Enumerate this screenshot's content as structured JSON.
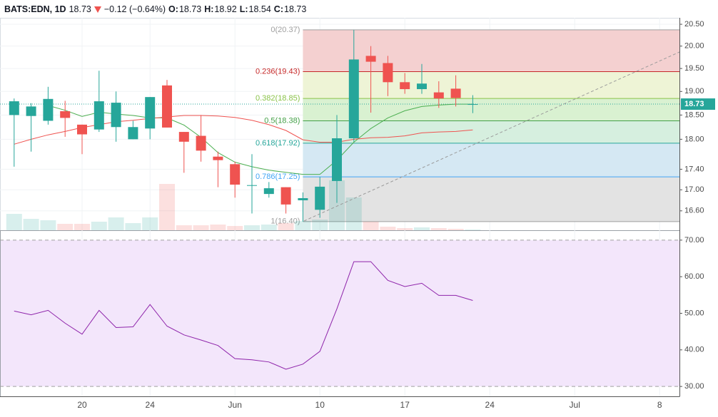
{
  "header": {
    "symbol": "BATS:EDN, 1D",
    "last": 18.73,
    "change": "−0.12 (−0.64%)",
    "ohlc": [
      {
        "name": "O:",
        "value": 18.73
      },
      {
        "name": "H:",
        "value": 18.92
      },
      {
        "name": "L:",
        "value": 18.54
      },
      {
        "name": "C:",
        "value": 18.73
      }
    ]
  },
  "chart_data": [
    {
      "type": "candlestick",
      "categories": [
        null,
        null,
        null,
        null,
        "20",
        null,
        null,
        null,
        "24",
        null,
        null,
        null,
        null,
        "Jun",
        null,
        null,
        null,
        null,
        "10",
        null,
        null,
        null,
        null,
        "17",
        null,
        null,
        null,
        null,
        "24",
        null,
        null,
        null,
        null,
        "Jul",
        null,
        null,
        null,
        null,
        "8",
        null
      ],
      "open": [
        18.5,
        18.48,
        18.38,
        18.58,
        18.3,
        18.2,
        18.25,
        18.0,
        18.22,
        19.13,
        18.15,
        18.07,
        17.65,
        17.5,
        17.08,
        16.92,
        17.05,
        16.8,
        16.62,
        17.17,
        18.02,
        19.78,
        19.62,
        19.2,
        19.05,
        18.98,
        19.06,
        18.73,
        null,
        null,
        null,
        null,
        null,
        null,
        null,
        null,
        null,
        null,
        null,
        null
      ],
      "high": [
        18.85,
        18.75,
        19.1,
        18.8,
        18.3,
        19.45,
        19.0,
        18.38,
        18.88,
        19.25,
        18.15,
        18.5,
        17.75,
        17.55,
        17.7,
        17.15,
        17.05,
        16.95,
        17.25,
        18.5,
        20.37,
        20.0,
        19.78,
        19.4,
        19.6,
        19.22,
        19.35,
        18.92,
        null,
        null,
        null,
        null,
        null,
        null,
        null,
        null,
        null,
        null,
        null,
        null
      ],
      "low": [
        17.45,
        17.75,
        18.3,
        18.05,
        17.7,
        18.15,
        17.95,
        18.0,
        18.0,
        18.24,
        17.33,
        17.55,
        17.05,
        16.85,
        16.55,
        16.85,
        16.55,
        16.4,
        16.47,
        16.75,
        17.95,
        18.55,
        18.9,
        18.95,
        18.95,
        18.65,
        18.68,
        18.54,
        null,
        null,
        null,
        null,
        null,
        null,
        null,
        null,
        null,
        null,
        null,
        null
      ],
      "close": [
        18.79,
        18.68,
        18.84,
        18.44,
        18.1,
        18.79,
        18.76,
        18.25,
        18.88,
        18.24,
        17.95,
        17.77,
        17.58,
        17.1,
        17.09,
        17.03,
        16.72,
        16.84,
        17.06,
        18.02,
        19.7,
        19.65,
        19.2,
        19.05,
        19.17,
        18.85,
        18.86,
        18.73,
        null,
        null,
        null,
        null,
        null,
        null,
        null,
        null,
        null,
        null,
        null,
        null
      ],
      "volume": [
        23,
        16,
        14,
        9,
        9,
        12,
        18,
        10,
        18,
        65,
        7,
        7,
        8,
        6,
        7,
        8,
        10,
        13,
        15,
        70,
        46,
        12,
        5,
        3,
        4,
        3,
        2,
        1,
        null,
        null,
        null,
        null,
        null,
        null,
        null,
        null,
        null,
        null,
        null,
        null
      ],
      "up_color": "#26a69a",
      "down_color": "#ef5350",
      "series": [
        {
          "color": "#4caf50",
          "values": [
            null,
            null,
            18.7,
            18.6,
            18.47,
            18.56,
            18.52,
            18.49,
            18.44,
            18.44,
            18.29,
            18.04,
            17.73,
            17.54,
            17.45,
            17.38,
            17.34,
            17.3,
            17.3,
            17.58,
            17.94,
            18.22,
            18.44,
            18.59,
            18.68,
            18.71,
            18.73,
            18.73,
            null,
            null,
            null,
            null,
            null,
            null,
            null,
            null,
            null,
            null,
            null,
            null
          ]
        },
        {
          "color": "#ef5350",
          "values": [
            17.9,
            18.0,
            18.09,
            18.16,
            18.24,
            18.3,
            18.36,
            18.39,
            18.43,
            18.46,
            18.49,
            18.49,
            18.48,
            18.45,
            18.39,
            18.3,
            18.18,
            17.99,
            17.94,
            17.94,
            18.0,
            18.03,
            18.04,
            18.07,
            18.13,
            18.15,
            18.16,
            18.19,
            null,
            null,
            null,
            null,
            null,
            null,
            null,
            null,
            null,
            null,
            null,
            null
          ]
        }
      ],
      "fib": [
        {
          "label": "0(20.37)",
          "value": 20.37,
          "color": "#9e9e9e",
          "fill": "#f4d0d0"
        },
        {
          "label": "0.236(19.43)",
          "value": 19.43,
          "color": "#c62828",
          "fill": "#eef4d6"
        },
        {
          "label": "0.382(18.85)",
          "value": 18.85,
          "color": "#8bc34a",
          "fill": "#d9f1d1"
        },
        {
          "label": "0.5(18.38)",
          "value": 18.38,
          "color": "#43a047",
          "fill": "#d6efdf"
        },
        {
          "label": "0.618(17.92)",
          "value": 17.92,
          "color": "#26a69a",
          "fill": "#d5e8f3"
        },
        {
          "label": "0.786(17.25)",
          "value": 17.25,
          "color": "#42a5f5",
          "fill": "#e3e3e3"
        },
        {
          "label": "1(16.40)",
          "value": 16.4,
          "color": "#9e9e9e"
        }
      ],
      "last_price": {
        "value": 18.73,
        "label": "18.73"
      },
      "last_color": "#26a69a",
      "ylim": [
        16.24,
        20.65
      ],
      "log_scale": true,
      "grid": true,
      "yticks": [
        {
          "value": 20.5,
          "label": "20.50"
        },
        {
          "value": 20,
          "label": "20.00"
        },
        {
          "value": 19.5,
          "label": "19.50"
        },
        {
          "value": 19,
          "label": "19.00"
        },
        {
          "value": 18.5,
          "label": "18.50"
        },
        {
          "value": 18,
          "label": "18.00"
        },
        {
          "value": 17.4,
          "label": "17.40"
        },
        {
          "value": 17,
          "label": "17.00"
        },
        {
          "value": 16.6,
          "label": "16.60"
        }
      ]
    },
    {
      "type": "line",
      "series": [
        {
          "color": "#8e24aa",
          "values": [
            50.6,
            49.6,
            50.8,
            47.3,
            44.3,
            50.8,
            46.1,
            46.3,
            52.4,
            46.5,
            44.1,
            42.7,
            41.2,
            37.6,
            37.3,
            36.7,
            34.7,
            36.1,
            39.6,
            51.2,
            64.1,
            64.1,
            59.0,
            57.3,
            58.2,
            54.9,
            54.9,
            53.5,
            null,
            null,
            null,
            null,
            null,
            null,
            null,
            null,
            null,
            null,
            null,
            null
          ]
        }
      ],
      "band": [
        30,
        70
      ],
      "band_color": "#f3e6fb",
      "ylim": [
        27.3,
        72.7
      ],
      "yticks": [
        {
          "value": 70,
          "label": "70.00"
        },
        {
          "value": 60,
          "label": "60.00"
        },
        {
          "value": 50,
          "label": "50.00"
        },
        {
          "value": 40,
          "label": "40.00"
        },
        {
          "value": 30,
          "label": "30.00"
        }
      ]
    }
  ]
}
